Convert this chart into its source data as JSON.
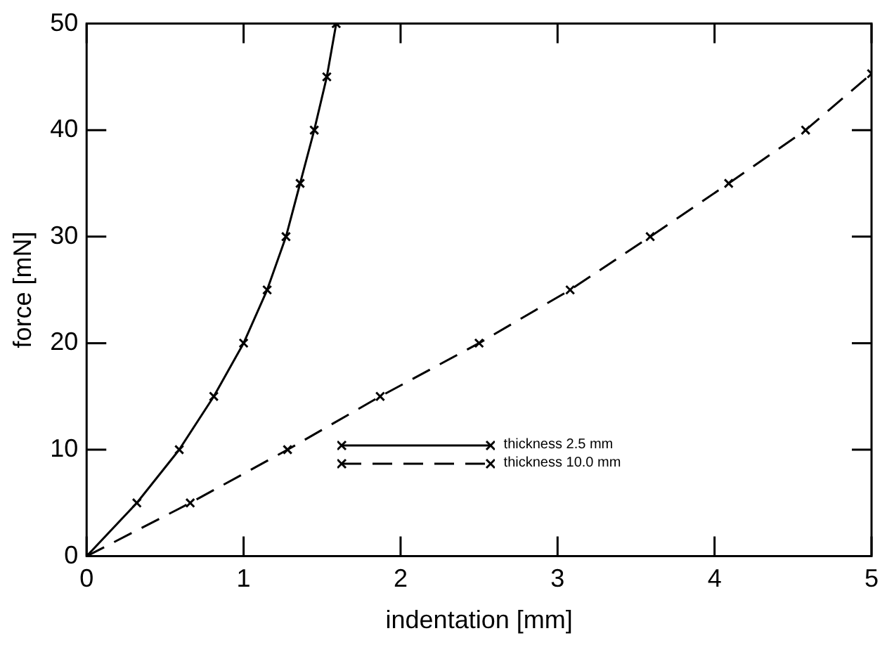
{
  "chart_data": {
    "type": "line",
    "xlabel": "indentation [mm]",
    "ylabel": "force [mN]",
    "xlim": [
      0,
      5
    ],
    "xticks": [
      0,
      1,
      2,
      3,
      4,
      5
    ],
    "ylim": [
      0,
      50
    ],
    "yticks": [
      0,
      10,
      20,
      30,
      40,
      50
    ],
    "grid": false,
    "legend": "bottom right",
    "marker": "cross",
    "series": [
      {
        "name": "thickness 2.5 mm",
        "color": "#000000",
        "line_style": "solid",
        "x": [
          0,
          0.32,
          0.59,
          0.81,
          1.0,
          1.15,
          1.27,
          1.36,
          1.45,
          1.53,
          1.59
        ],
        "values": [
          0,
          5,
          10,
          15,
          20,
          25,
          30,
          35,
          40,
          45,
          50
        ]
      },
      {
        "name": "thickness 10.0 mm",
        "color": "#000000",
        "line_style": "dashed",
        "x": [
          0,
          0.66,
          1.28,
          1.87,
          2.5,
          3.08,
          3.59,
          4.09,
          4.58,
          5.0
        ],
        "values": [
          0,
          5,
          10,
          15,
          20,
          25,
          30,
          35,
          40,
          45.3
        ]
      }
    ]
  }
}
